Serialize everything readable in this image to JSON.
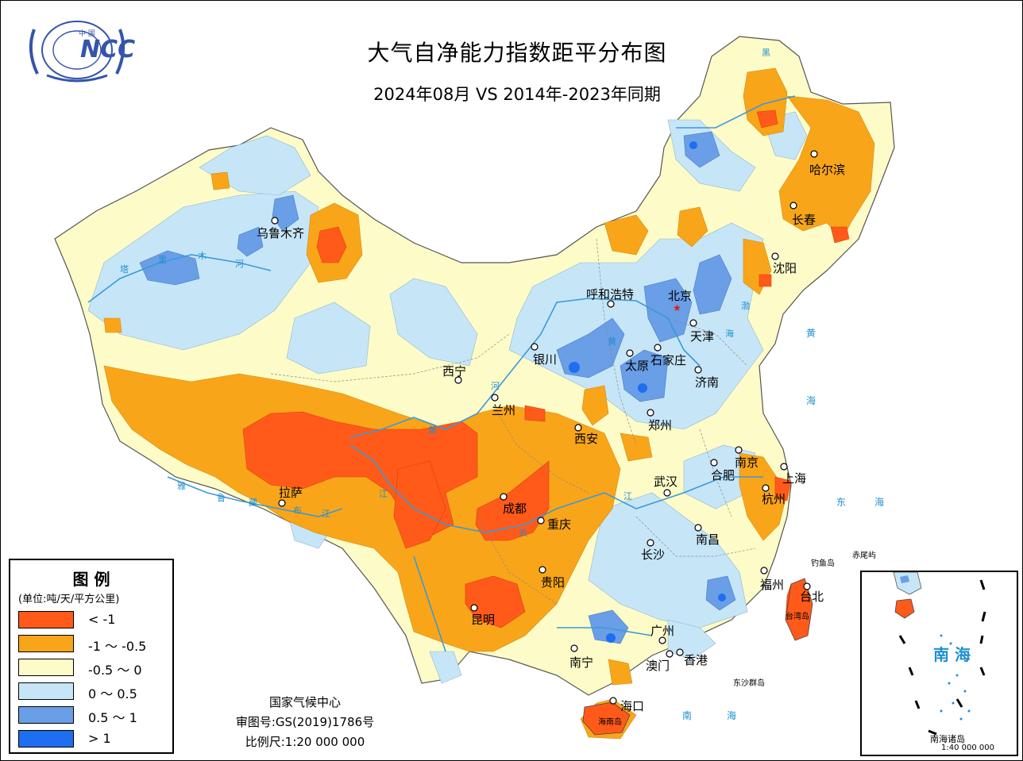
{
  "title": "大气自净能力指数距平分布图",
  "subtitle": "2024年08月 VS 2014年-2023年同期",
  "logo": {
    "text": "NCC",
    "country_mark": "中 国"
  },
  "legend": {
    "title": "图 例",
    "unit": "(单位:吨/天/平方公里)",
    "items": [
      {
        "label": "< -1",
        "color": "#ff5a1a"
      },
      {
        "label": "-1 ～ -0.5",
        "color": "#f9a51a"
      },
      {
        "label": "-0.5 ～ 0",
        "color": "#fdfcc8"
      },
      {
        "label": "0 ～ 0.5",
        "color": "#c6e6f8"
      },
      {
        "label": "0.5 ～ 1",
        "color": "#6a9ee6"
      },
      {
        "label": "> 1",
        "color": "#1e6ef0"
      }
    ]
  },
  "footer": {
    "agency": "国家气候中心",
    "map_review_number": "审图号:GS(2019)1786号",
    "scale": "比例尺:1:20 000 000"
  },
  "cities": {
    "harbin": "哈尔滨",
    "changchun": "长春",
    "shenyang": "沈阳",
    "urumqi": "乌鲁木齐",
    "hohhot": "呼和浩特",
    "beijing": "北京",
    "tianjin": "天津",
    "yinchuan": "银川",
    "taiyuan": "太原",
    "shijiazhuang": "石家庄",
    "jinan": "济南",
    "xining": "西宁",
    "lanzhou": "兰州",
    "zhengzhou": "郑州",
    "xian": "西安",
    "nanjing": "南京",
    "hefei": "合肥",
    "shanghai": "上海",
    "lhasa": "拉萨",
    "wuhan": "武汉",
    "hangzhou": "杭州",
    "chengdu": "成都",
    "chongqing": "重庆",
    "nanchang": "南昌",
    "changsha": "长沙",
    "guiyang": "贵阳",
    "fuzhou": "福州",
    "taipei": "台北",
    "kunming": "昆明",
    "guangzhou": "广州",
    "nanning": "南宁",
    "macau": "澳门",
    "hongkong": "香港",
    "haikou": "海口"
  },
  "geo_labels": {
    "tarim1": "塔",
    "tarim2": "里",
    "tarim3": "木",
    "tarim4": "河",
    "yellow1": "黄",
    "yellow2": "河",
    "yellow3": "黄",
    "yarlung1": "雅",
    "yarlung2": "鲁",
    "yarlung3": "藏",
    "yarlung4": "布",
    "yarlung5": "江",
    "yangtze1": "江",
    "yangtze2": "长",
    "yangtze3": "江",
    "heilong": "黑",
    "bohai1": "渤",
    "bohai2": "海"
  },
  "seas": {
    "yellow_sea1": "黄",
    "yellow_sea2": "海",
    "east_sea1": "东",
    "east_sea2": "海",
    "south_sea1": "南",
    "south_sea2": "海"
  },
  "islands": {
    "taiwan": "台湾岛",
    "hainan": "海南岛",
    "diaoyu": "钓鱼岛",
    "chiwei": "赤尾屿",
    "dongsha": "东沙群岛"
  },
  "inset": {
    "sea_label": "南 海",
    "islands_label": "南海诸岛",
    "scale": "1:40 000 000"
  }
}
